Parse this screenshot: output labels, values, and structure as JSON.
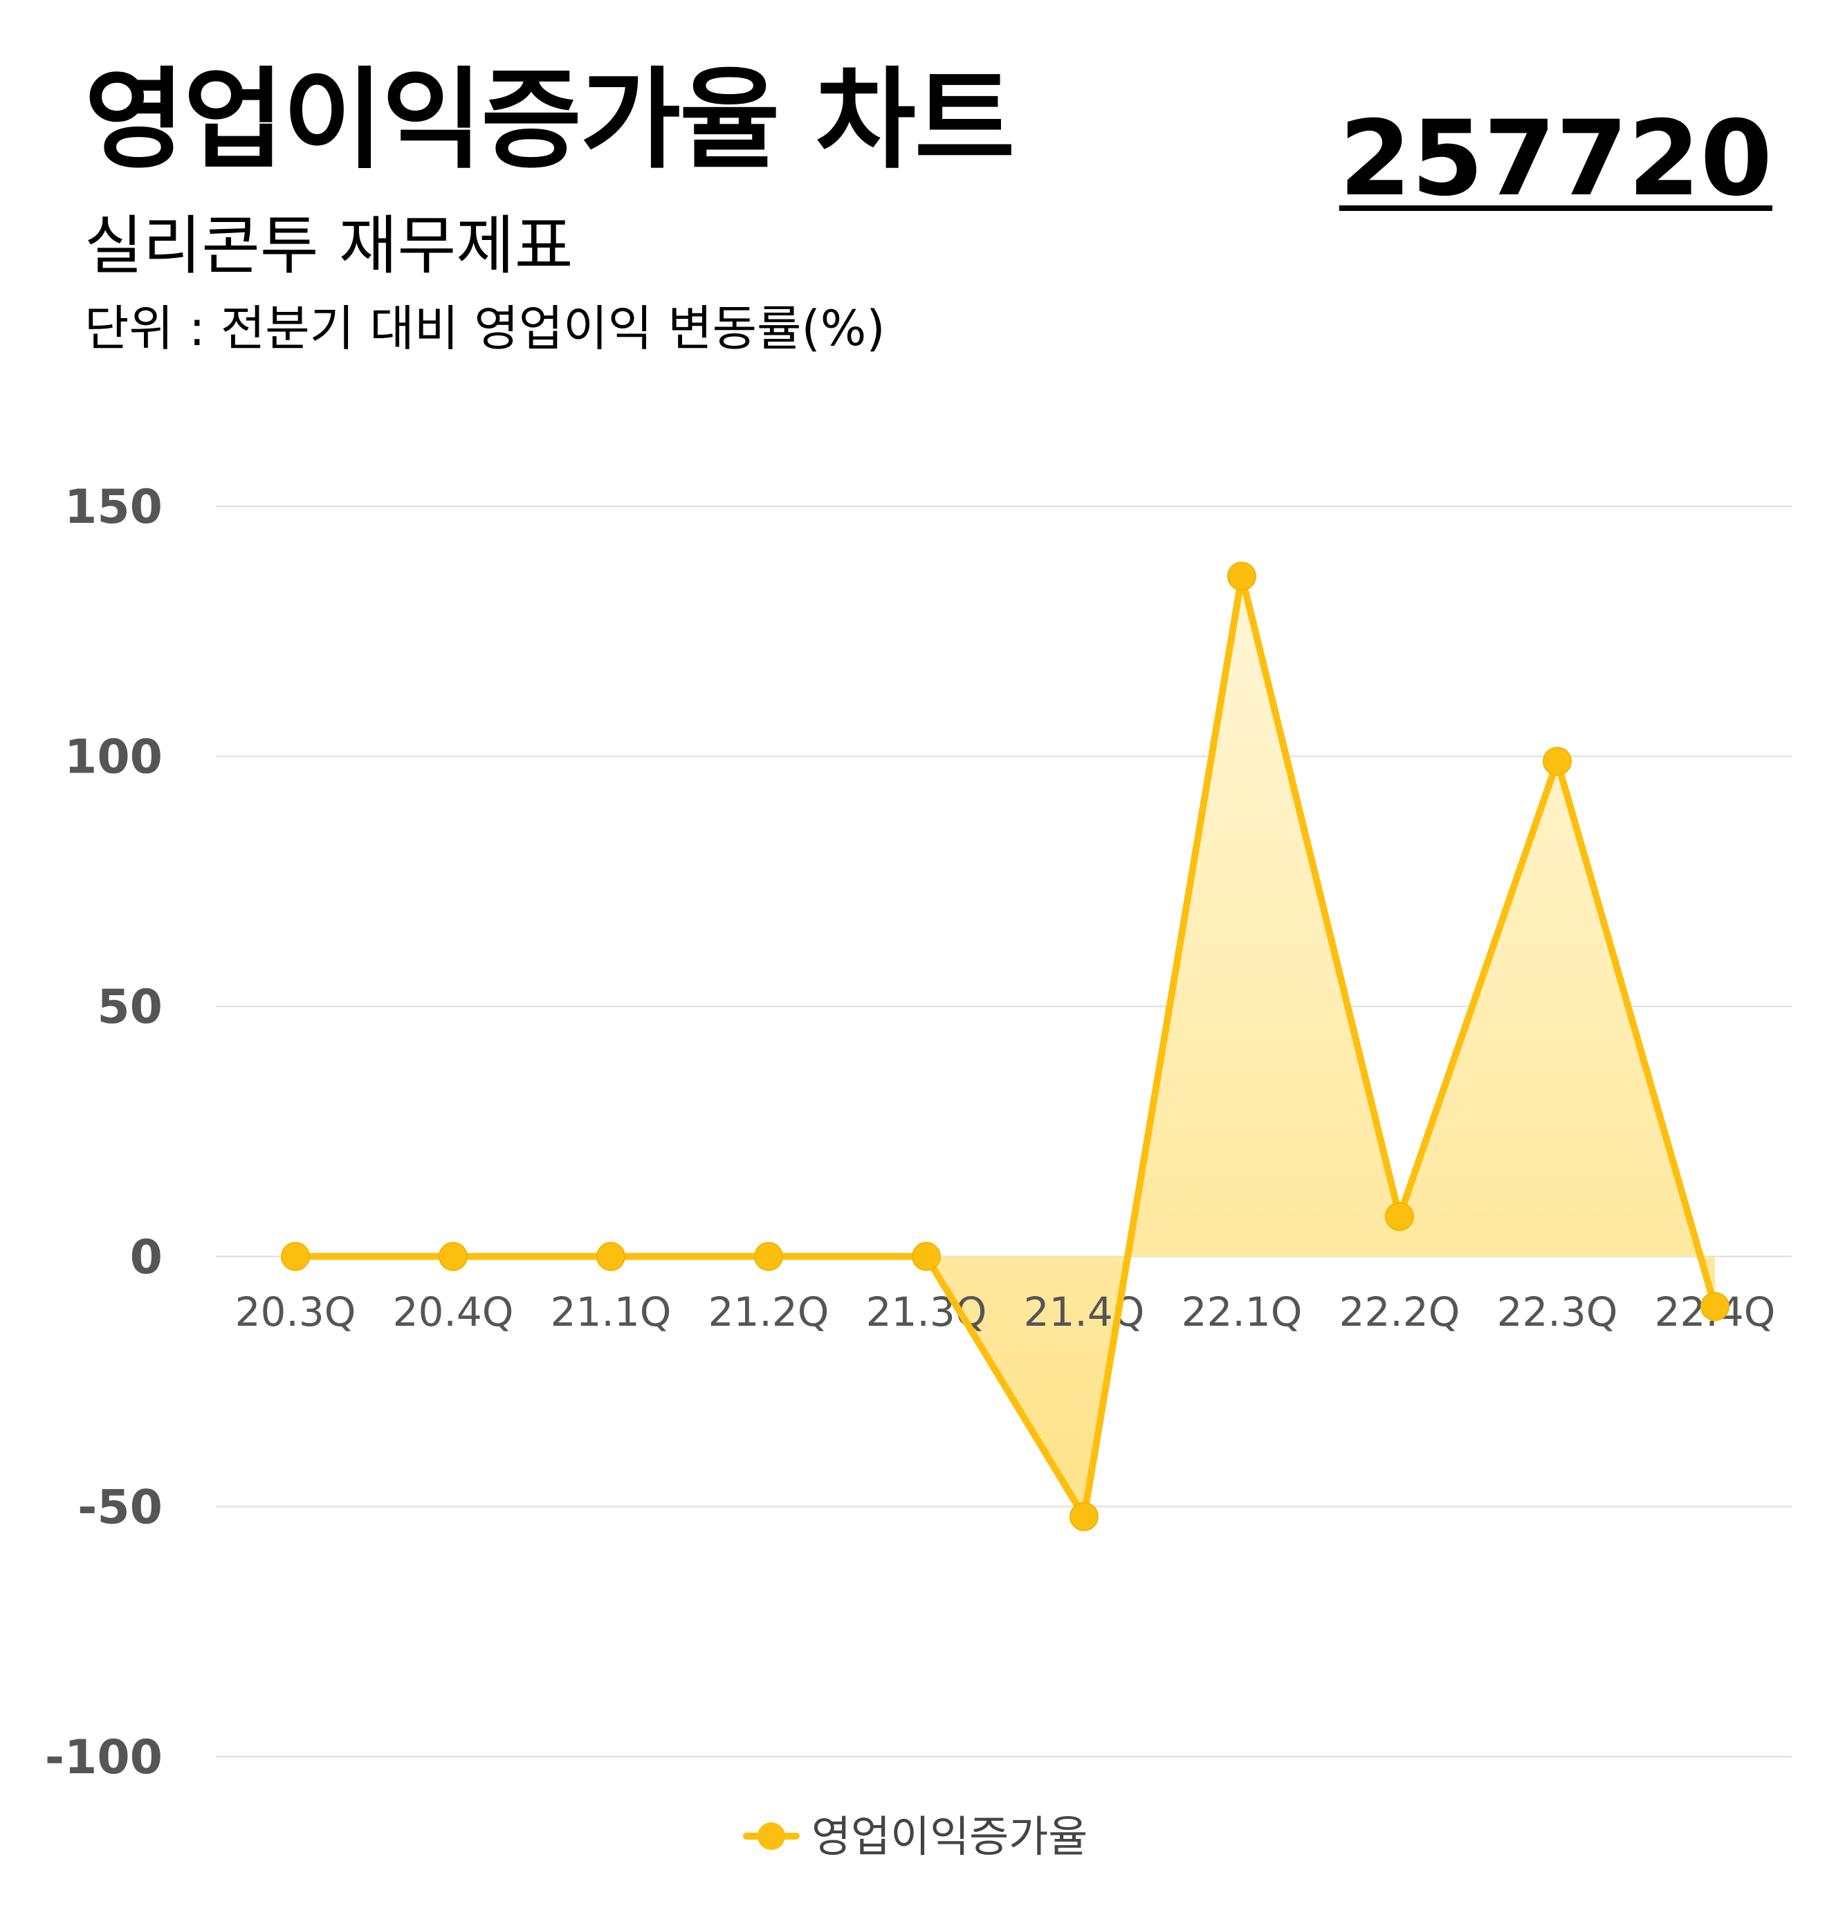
{
  "header": {
    "title": "영업이익증가율 차트",
    "code": "257720",
    "subtitle": "실리콘투 재무제표",
    "unit": "단위 : 전분기 대비 영업이익 변동률(%)"
  },
  "colors": {
    "line": "#FDBF0F",
    "fill_top": "#FFF6D6",
    "fill_bottom": "#FFE38A",
    "grid": "#DDDDDD",
    "tick": "#555555"
  },
  "chart_data": {
    "type": "area",
    "categories": [
      "20.3Q",
      "20.4Q",
      "21.1Q",
      "21.2Q",
      "21.3Q",
      "21.4Q",
      "22.1Q",
      "22.2Q",
      "22.3Q",
      "22.4Q"
    ],
    "series": [
      {
        "name": "영업이익증가율",
        "values": [
          0,
          0,
          0,
          0,
          0,
          -52,
          136,
          8,
          99,
          -10
        ]
      }
    ],
    "yticks": [
      150,
      100,
      50,
      0,
      -50,
      -100
    ],
    "ylim": [
      -100,
      150
    ],
    "grid": true,
    "legend_position": "bottom-center",
    "xlabel": "",
    "ylabel": ""
  }
}
